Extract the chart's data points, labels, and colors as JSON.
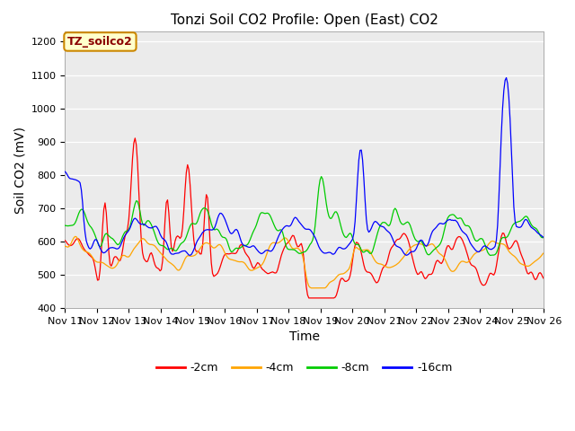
{
  "title": "Tonzi Soil CO2 Profile: Open (East) CO2",
  "xlabel": "Time",
  "ylabel": "Soil CO2 (mV)",
  "ylim": [
    400,
    1230
  ],
  "yticks": [
    400,
    500,
    600,
    700,
    800,
    900,
    1000,
    1100,
    1200
  ],
  "series_labels": [
    "-2cm",
    "-4cm",
    "-8cm",
    "-16cm"
  ],
  "series_colors": [
    "#ff0000",
    "#ffa500",
    "#00cc00",
    "#0000ff"
  ],
  "annotation_label": "TZ_soilco2",
  "annotation_bg": "#ffffcc",
  "annotation_border": "#cc8800",
  "plot_bg": "#ebebeb",
  "fig_bg": "#ffffff",
  "x_tick_labels": [
    "Nov 11",
    "Nov 12",
    "Nov 13",
    "Nov 14",
    "Nov 15",
    "Nov 16",
    "Nov 17",
    "Nov 18",
    "Nov 19",
    "Nov 20",
    "Nov 21",
    "Nov 22",
    "Nov 23",
    "Nov 24",
    "Nov 25",
    "Nov 26"
  ],
  "grid_color": "#ffffff",
  "title_fontsize": 11,
  "axis_label_fontsize": 10,
  "tick_fontsize": 8,
  "legend_fontsize": 9
}
